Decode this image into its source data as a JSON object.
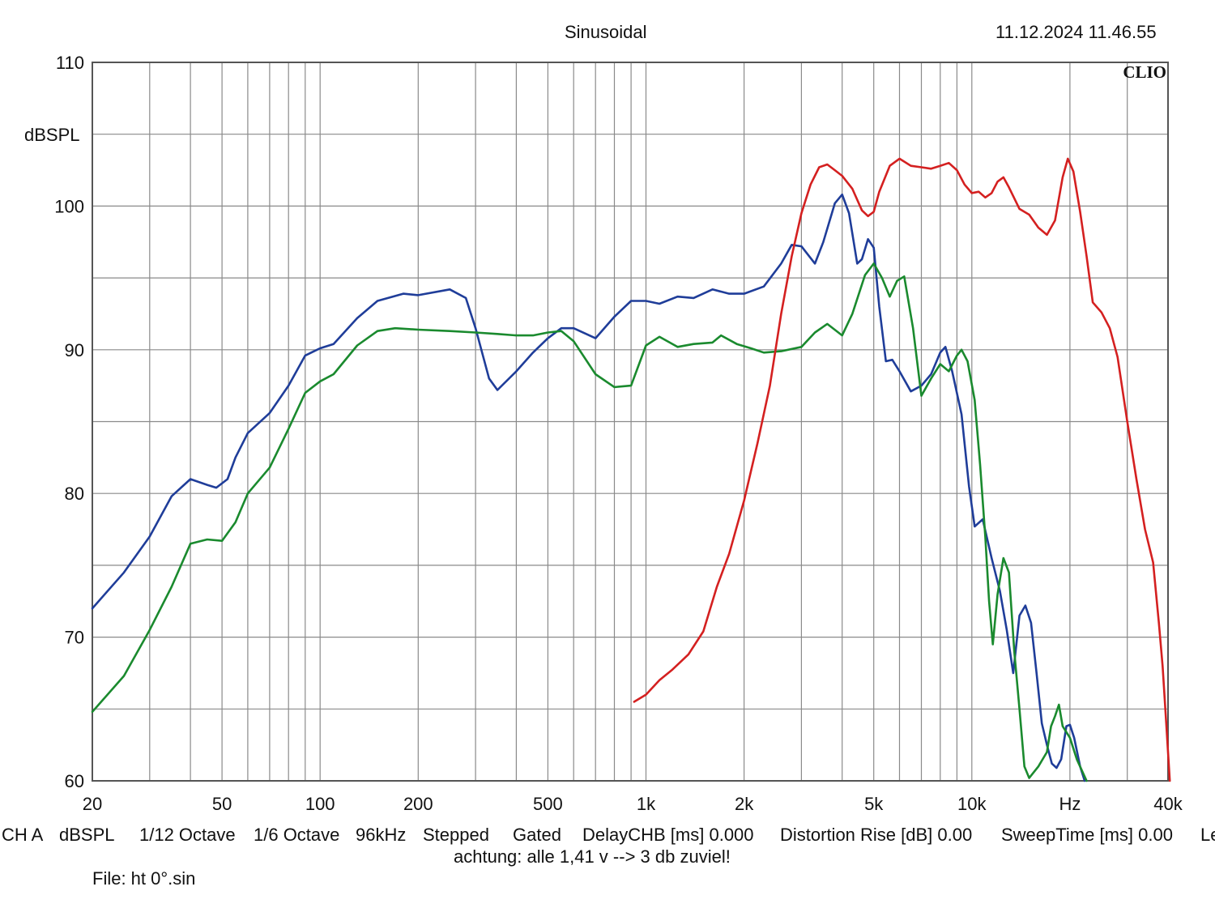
{
  "header": {
    "mode": "Sinusoidal",
    "datetime": "11.12.2024 11.46.55",
    "brand": "CLIO"
  },
  "info": {
    "channel": "CH A",
    "unit": "dBSPL",
    "smoothing": "1/12 Octave",
    "resolution": "1/6 Octave",
    "sample_rate": "96kHz",
    "stepped": "Stepped",
    "gated": "Gated",
    "delay": "DelayCHB [ms] 0.000",
    "distortion": "Distortion Rise [dB] 0.00",
    "sweep": "SweepTime [ms] 0.00",
    "cut": "Le",
    "note": "achtung: alle 1,41 v --> 3 db zuviel!",
    "file": "File: ht 0°.sin"
  },
  "colors": {
    "grid": "#8a8a8a",
    "frame": "#555555"
  },
  "chart_data": {
    "type": "line",
    "title": "Sinusoidal",
    "ylabel": "dBSPL",
    "xlabel": "Hz",
    "x_scale": "log",
    "xlim": [
      20,
      40000
    ],
    "ylim": [
      60,
      110
    ],
    "grid": true,
    "y_ticks": [
      {
        "value": 110,
        "label": "110"
      },
      {
        "value": 100,
        "label": "100"
      },
      {
        "value": 90,
        "label": "90"
      },
      {
        "value": 80,
        "label": "80"
      },
      {
        "value": 70,
        "label": "70"
      },
      {
        "value": 60,
        "label": "60"
      }
    ],
    "x_ticks": [
      {
        "value": 20,
        "label": "20"
      },
      {
        "value": 50,
        "label": "50"
      },
      {
        "value": 100,
        "label": "100"
      },
      {
        "value": 200,
        "label": "200"
      },
      {
        "value": 500,
        "label": "500"
      },
      {
        "value": 1000,
        "label": "1k"
      },
      {
        "value": 2000,
        "label": "2k"
      },
      {
        "value": 5000,
        "label": "5k"
      },
      {
        "value": 10000,
        "label": "10k"
      },
      {
        "value": 20000,
        "label": "Hz"
      },
      {
        "value": 40000,
        "label": "40k"
      }
    ],
    "series": [
      {
        "color": "#1f3d99",
        "points": [
          [
            20,
            72
          ],
          [
            25,
            74.5
          ],
          [
            30,
            77
          ],
          [
            35,
            79.8
          ],
          [
            40,
            81
          ],
          [
            45,
            80.6
          ],
          [
            48,
            80.4
          ],
          [
            52,
            81
          ],
          [
            55,
            82.5
          ],
          [
            60,
            84.2
          ],
          [
            70,
            85.6
          ],
          [
            80,
            87.5
          ],
          [
            90,
            89.6
          ],
          [
            100,
            90.1
          ],
          [
            110,
            90.4
          ],
          [
            130,
            92.2
          ],
          [
            150,
            93.4
          ],
          [
            180,
            93.9
          ],
          [
            200,
            93.8
          ],
          [
            250,
            94.2
          ],
          [
            280,
            93.6
          ],
          [
            300,
            91.5
          ],
          [
            330,
            88
          ],
          [
            350,
            87.2
          ],
          [
            400,
            88.5
          ],
          [
            450,
            89.8
          ],
          [
            500,
            90.8
          ],
          [
            550,
            91.5
          ],
          [
            600,
            91.5
          ],
          [
            700,
            90.8
          ],
          [
            800,
            92.3
          ],
          [
            900,
            93.4
          ],
          [
            1000,
            93.4
          ],
          [
            1100,
            93.2
          ],
          [
            1250,
            93.7
          ],
          [
            1400,
            93.6
          ],
          [
            1600,
            94.2
          ],
          [
            1800,
            93.9
          ],
          [
            2000,
            93.9
          ],
          [
            2300,
            94.4
          ],
          [
            2600,
            96
          ],
          [
            2800,
            97.3
          ],
          [
            3000,
            97.2
          ],
          [
            3300,
            96
          ],
          [
            3500,
            97.5
          ],
          [
            3800,
            100.2
          ],
          [
            4000,
            100.8
          ],
          [
            4200,
            99.5
          ],
          [
            4450,
            96
          ],
          [
            4600,
            96.3
          ],
          [
            4800,
            97.7
          ],
          [
            5000,
            97.1
          ],
          [
            5200,
            93
          ],
          [
            5450,
            89.2
          ],
          [
            5700,
            89.3
          ],
          [
            6000,
            88.5
          ],
          [
            6500,
            87.1
          ],
          [
            7000,
            87.5
          ],
          [
            7500,
            88.3
          ],
          [
            8000,
            89.8
          ],
          [
            8300,
            90.2
          ],
          [
            8700,
            88.5
          ],
          [
            9300,
            85.5
          ],
          [
            9800,
            80.5
          ],
          [
            10200,
            77.7
          ],
          [
            10800,
            78.2
          ],
          [
            11500,
            75.5
          ],
          [
            12200,
            73.2
          ],
          [
            12800,
            70.5
          ],
          [
            13400,
            67.5
          ],
          [
            14000,
            71.5
          ],
          [
            14600,
            72.2
          ],
          [
            15200,
            71
          ],
          [
            15800,
            67.5
          ],
          [
            16400,
            64
          ],
          [
            17000,
            62.5
          ],
          [
            17600,
            61.2
          ],
          [
            18200,
            60.9
          ],
          [
            18800,
            61.5
          ],
          [
            19500,
            63.8
          ],
          [
            20000,
            63.9
          ],
          [
            20600,
            63
          ],
          [
            21500,
            61
          ],
          [
            22200,
            60
          ]
        ]
      },
      {
        "color": "#1a8a2e",
        "points": [
          [
            20,
            64.8
          ],
          [
            25,
            67.3
          ],
          [
            30,
            70.5
          ],
          [
            35,
            73.5
          ],
          [
            40,
            76.5
          ],
          [
            45,
            76.8
          ],
          [
            50,
            76.7
          ],
          [
            55,
            78
          ],
          [
            60,
            80
          ],
          [
            70,
            81.8
          ],
          [
            80,
            84.5
          ],
          [
            90,
            87
          ],
          [
            100,
            87.8
          ],
          [
            110,
            88.3
          ],
          [
            130,
            90.3
          ],
          [
            150,
            91.3
          ],
          [
            170,
            91.5
          ],
          [
            200,
            91.4
          ],
          [
            250,
            91.3
          ],
          [
            300,
            91.2
          ],
          [
            350,
            91.1
          ],
          [
            400,
            91
          ],
          [
            450,
            91
          ],
          [
            500,
            91.2
          ],
          [
            550,
            91.3
          ],
          [
            600,
            90.6
          ],
          [
            700,
            88.3
          ],
          [
            800,
            87.4
          ],
          [
            900,
            87.5
          ],
          [
            1000,
            90.3
          ],
          [
            1100,
            90.9
          ],
          [
            1250,
            90.2
          ],
          [
            1400,
            90.4
          ],
          [
            1600,
            90.5
          ],
          [
            1700,
            91
          ],
          [
            1900,
            90.4
          ],
          [
            2100,
            90.1
          ],
          [
            2300,
            89.8
          ],
          [
            2600,
            89.9
          ],
          [
            3000,
            90.2
          ],
          [
            3300,
            91.2
          ],
          [
            3600,
            91.8
          ],
          [
            4000,
            91
          ],
          [
            4300,
            92.5
          ],
          [
            4700,
            95.2
          ],
          [
            5000,
            96
          ],
          [
            5300,
            95
          ],
          [
            5600,
            93.7
          ],
          [
            5900,
            94.8
          ],
          [
            6200,
            95.1
          ],
          [
            6600,
            91.5
          ],
          [
            7000,
            86.8
          ],
          [
            7500,
            88
          ],
          [
            8000,
            89
          ],
          [
            8500,
            88.5
          ],
          [
            9000,
            89.6
          ],
          [
            9300,
            90
          ],
          [
            9700,
            89.2
          ],
          [
            10200,
            86.5
          ],
          [
            10600,
            82
          ],
          [
            11000,
            77
          ],
          [
            11300,
            72.5
          ],
          [
            11600,
            69.5
          ],
          [
            12000,
            73
          ],
          [
            12500,
            75.5
          ],
          [
            13000,
            74.5
          ],
          [
            13500,
            69
          ],
          [
            14000,
            65
          ],
          [
            14500,
            61
          ],
          [
            15000,
            60.2
          ],
          [
            16000,
            61
          ],
          [
            17000,
            62
          ],
          [
            17500,
            63.8
          ],
          [
            18000,
            64.5
          ],
          [
            18500,
            65.3
          ],
          [
            19000,
            63.8
          ],
          [
            20000,
            63
          ],
          [
            21000,
            61.5
          ],
          [
            22500,
            60
          ]
        ]
      },
      {
        "color": "#d42020",
        "points": [
          [
            920,
            65.5
          ],
          [
            1000,
            66
          ],
          [
            1100,
            67
          ],
          [
            1200,
            67.7
          ],
          [
            1350,
            68.8
          ],
          [
            1500,
            70.4
          ],
          [
            1650,
            73.5
          ],
          [
            1800,
            75.8
          ],
          [
            2000,
            79.5
          ],
          [
            2200,
            83.5
          ],
          [
            2400,
            87.5
          ],
          [
            2600,
            92.5
          ],
          [
            2800,
            96.5
          ],
          [
            3000,
            99.5
          ],
          [
            3200,
            101.5
          ],
          [
            3400,
            102.7
          ],
          [
            3600,
            102.9
          ],
          [
            3800,
            102.5
          ],
          [
            4000,
            102.1
          ],
          [
            4300,
            101.2
          ],
          [
            4600,
            99.7
          ],
          [
            4800,
            99.3
          ],
          [
            5000,
            99.6
          ],
          [
            5200,
            101
          ],
          [
            5600,
            102.8
          ],
          [
            6000,
            103.3
          ],
          [
            6500,
            102.8
          ],
          [
            7000,
            102.7
          ],
          [
            7500,
            102.6
          ],
          [
            8000,
            102.8
          ],
          [
            8500,
            103
          ],
          [
            9000,
            102.5
          ],
          [
            9500,
            101.5
          ],
          [
            10000,
            100.9
          ],
          [
            10500,
            101
          ],
          [
            11000,
            100.6
          ],
          [
            11500,
            100.9
          ],
          [
            12000,
            101.7
          ],
          [
            12500,
            102
          ],
          [
            13000,
            101.3
          ],
          [
            14000,
            99.8
          ],
          [
            15000,
            99.4
          ],
          [
            16000,
            98.5
          ],
          [
            17000,
            98
          ],
          [
            18000,
            99
          ],
          [
            19000,
            102
          ],
          [
            19700,
            103.3
          ],
          [
            20500,
            102.4
          ],
          [
            21500,
            99.6
          ],
          [
            22500,
            96.5
          ],
          [
            23500,
            93.3
          ],
          [
            25000,
            92.6
          ],
          [
            26500,
            91.5
          ],
          [
            28000,
            89.5
          ],
          [
            30000,
            85
          ],
          [
            32000,
            81
          ],
          [
            34000,
            77.5
          ],
          [
            36000,
            75.2
          ],
          [
            37500,
            71
          ],
          [
            38500,
            68
          ],
          [
            39500,
            64
          ],
          [
            40500,
            60
          ]
        ]
      }
    ]
  }
}
